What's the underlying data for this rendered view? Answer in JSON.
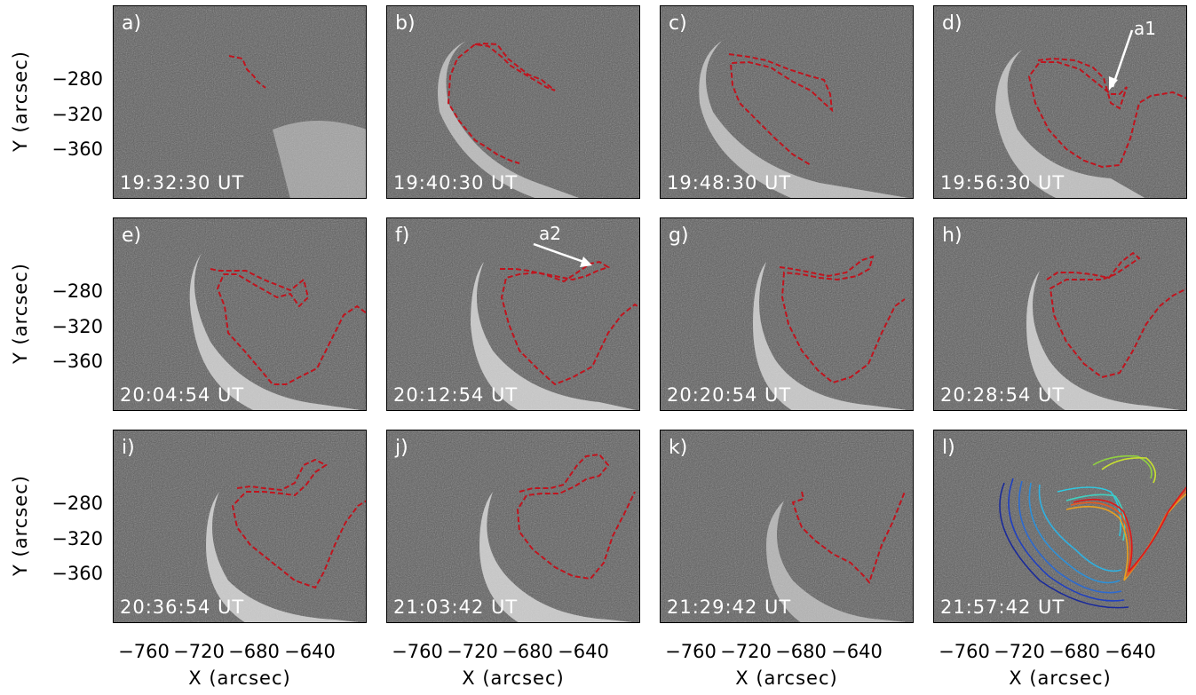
{
  "y_axis_label": "Y (arcsec)",
  "x_axis_label": "X (arcsec)",
  "y_ticks": [
    "−280",
    "−320",
    "−360"
  ],
  "x_ticks": [
    "−760",
    "−720",
    "−680",
    "−640"
  ],
  "panels": [
    {
      "label": "a)",
      "time": "19:32:30 UT"
    },
    {
      "label": "b)",
      "time": "19:40:30 UT"
    },
    {
      "label": "c)",
      "time": "19:48:30 UT"
    },
    {
      "label": "d)",
      "time": "19:56:30 UT",
      "annotation": "a1"
    },
    {
      "label": "e)",
      "time": "20:04:54 UT"
    },
    {
      "label": "f)",
      "time": "20:12:54 UT",
      "annotation": "a2"
    },
    {
      "label": "g)",
      "time": "20:20:54 UT"
    },
    {
      "label": "h)",
      "time": "20:28:54 UT"
    },
    {
      "label": "i)",
      "time": "20:36:54 UT"
    },
    {
      "label": "j)",
      "time": "21:03:42 UT"
    },
    {
      "label": "k)",
      "time": "21:29:42 UT"
    },
    {
      "label": "l)",
      "time": "21:57:42 UT"
    }
  ],
  "colors": {
    "contour": "#c0141e",
    "annotation": "#ffffff"
  }
}
